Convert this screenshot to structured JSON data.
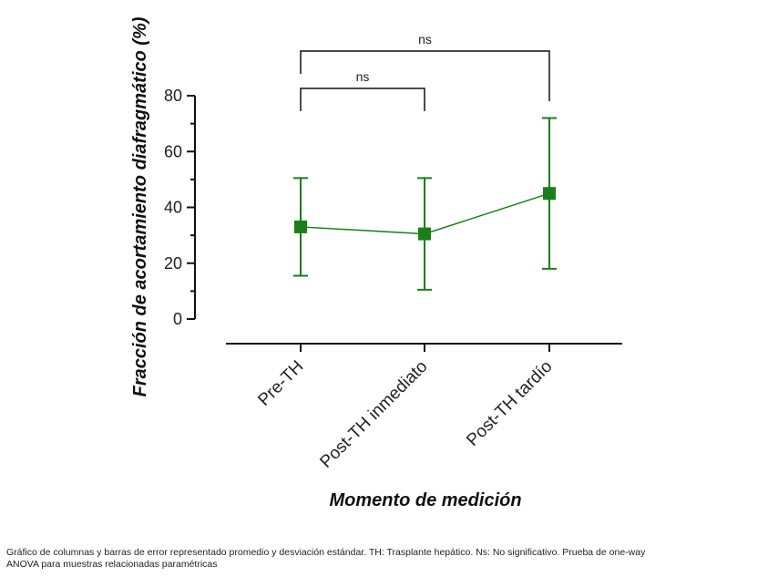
{
  "chart_data": {
    "type": "line",
    "categories": [
      "Pre-TH",
      "Post-TH inmediato",
      "Post-TH tardío"
    ],
    "series": [
      {
        "name": "Fracción de acortamiento diafragmático",
        "values": [
          33,
          30.5,
          45
        ],
        "error": [
          17.5,
          20,
          27
        ],
        "color": "#1a7f1a"
      }
    ],
    "ylabel": "Fracción de acortamiento diafragmático (%)",
    "xlabel": "Momento de medición",
    "ylim": [
      0,
      80
    ],
    "yticks": [
      0,
      20,
      40,
      60,
      80
    ],
    "grid": false,
    "significance": [
      {
        "from": 0,
        "to": 1,
        "label": "ns"
      },
      {
        "from": 0,
        "to": 2,
        "label": "ns"
      }
    ]
  },
  "caption": {
    "line1": "Gráfico de columnas y barras de error representado promedio y desviación estándar. TH: Trasplante hepático. Ns: No significativo. Prueba de one-way",
    "line2": "ANOVA para muestras relacionadas paramétricas"
  }
}
